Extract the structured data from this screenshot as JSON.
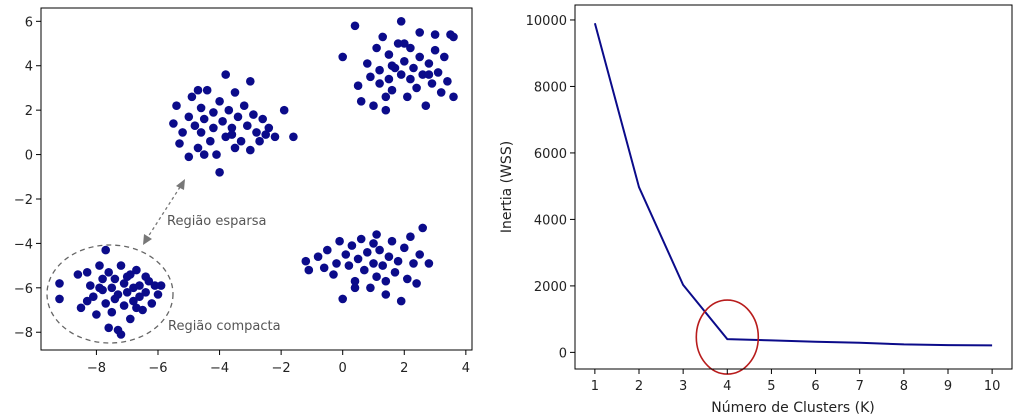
{
  "chart_data": [
    {
      "type": "scatter",
      "xlim": [
        -9.8,
        4.2
      ],
      "ylim": [
        -8.8,
        6.6
      ],
      "xticks": [
        -8,
        -6,
        -4,
        -2,
        0,
        2,
        4
      ],
      "yticks": [
        -8,
        -6,
        -4,
        -2,
        0,
        2,
        4,
        6
      ],
      "xtick_labels": [
        "−8",
        "−6",
        "−4",
        "−2",
        "0",
        "2",
        "4"
      ],
      "ytick_labels": [
        "−8",
        "−6",
        "−4",
        "−2",
        "0",
        "2",
        "4",
        "6"
      ],
      "grid": false,
      "point_color": "#0b0b8a",
      "annotation_color": "#666666",
      "annotations": {
        "sparse_label": "Região esparsa",
        "compact_label": "Região compacta"
      },
      "points": [
        [
          -9.2,
          -5.8
        ],
        [
          -9.2,
          -6.5
        ],
        [
          -8.5,
          -6.9
        ],
        [
          -8.3,
          -5.3
        ],
        [
          -8.2,
          -5.9
        ],
        [
          -8.1,
          -6.4
        ],
        [
          -8.0,
          -7.2
        ],
        [
          -7.9,
          -5.0
        ],
        [
          -7.8,
          -5.6
        ],
        [
          -7.8,
          -6.1
        ],
        [
          -7.7,
          -6.7
        ],
        [
          -7.7,
          -4.3
        ],
        [
          -7.6,
          -5.3
        ],
        [
          -7.5,
          -6.0
        ],
        [
          -7.5,
          -7.1
        ],
        [
          -7.4,
          -5.6
        ],
        [
          -7.3,
          -6.3
        ],
        [
          -7.3,
          -7.9
        ],
        [
          -7.2,
          -5.0
        ],
        [
          -7.1,
          -5.8
        ],
        [
          -7.1,
          -6.8
        ],
        [
          -7.0,
          -6.2
        ],
        [
          -6.9,
          -5.4
        ],
        [
          -6.9,
          -7.4
        ],
        [
          -6.8,
          -6.0
        ],
        [
          -6.8,
          -6.6
        ],
        [
          -6.7,
          -5.2
        ],
        [
          -6.6,
          -5.9
        ],
        [
          -6.6,
          -6.4
        ],
        [
          -6.5,
          -7.0
        ],
        [
          -6.4,
          -5.5
        ],
        [
          -6.4,
          -6.2
        ],
        [
          -6.3,
          -5.7
        ],
        [
          -6.2,
          -6.7
        ],
        [
          -6.1,
          -5.9
        ],
        [
          -6.0,
          -6.3
        ],
        [
          -5.9,
          -5.9
        ],
        [
          -7.9,
          -6.0
        ],
        [
          -7.4,
          -6.5
        ],
        [
          -7.6,
          -7.8
        ],
        [
          -8.6,
          -5.4
        ],
        [
          -7.0,
          -5.5
        ],
        [
          -6.7,
          -6.9
        ],
        [
          -7.2,
          -8.1
        ],
        [
          -8.3,
          -6.6
        ],
        [
          -5.5,
          1.4
        ],
        [
          -5.4,
          2.2
        ],
        [
          -5.3,
          0.5
        ],
        [
          -5.2,
          1.0
        ],
        [
          -5.0,
          1.7
        ],
        [
          -5.0,
          -0.1
        ],
        [
          -4.9,
          2.6
        ],
        [
          -4.8,
          1.3
        ],
        [
          -4.7,
          0.3
        ],
        [
          -4.6,
          2.1
        ],
        [
          -4.6,
          1.0
        ],
        [
          -4.5,
          1.6
        ],
        [
          -4.4,
          2.9
        ],
        [
          -4.3,
          0.6
        ],
        [
          -4.2,
          1.9
        ],
        [
          -4.2,
          1.2
        ],
        [
          -4.1,
          0.0
        ],
        [
          -4.0,
          2.4
        ],
        [
          -4.0,
          -0.8
        ],
        [
          -3.9,
          1.5
        ],
        [
          -3.8,
          0.8
        ],
        [
          -3.8,
          3.6
        ],
        [
          -3.7,
          2.0
        ],
        [
          -3.6,
          1.2
        ],
        [
          -3.5,
          0.3
        ],
        [
          -3.5,
          2.8
        ],
        [
          -3.4,
          1.7
        ],
        [
          -3.3,
          0.6
        ],
        [
          -3.2,
          2.2
        ],
        [
          -3.1,
          1.3
        ],
        [
          -3.0,
          3.3
        ],
        [
          -3.0,
          0.2
        ],
        [
          -2.9,
          1.8
        ],
        [
          -2.8,
          1.0
        ],
        [
          -2.7,
          0.6
        ],
        [
          -2.6,
          1.6
        ],
        [
          -2.4,
          1.2
        ],
        [
          -2.2,
          0.8
        ],
        [
          -1.9,
          2.0
        ],
        [
          -1.6,
          0.8
        ],
        [
          -4.7,
          2.9
        ],
        [
          -3.6,
          0.9
        ],
        [
          -4.5,
          0.0
        ],
        [
          -2.5,
          0.9
        ],
        [
          -1.2,
          -4.8
        ],
        [
          -1.1,
          -5.2
        ],
        [
          -0.8,
          -4.6
        ],
        [
          -0.6,
          -5.1
        ],
        [
          -0.5,
          -4.3
        ],
        [
          -0.3,
          -5.4
        ],
        [
          -0.2,
          -4.9
        ],
        [
          -0.1,
          -3.9
        ],
        [
          0.0,
          -6.5
        ],
        [
          0.1,
          -4.5
        ],
        [
          0.2,
          -5.0
        ],
        [
          0.3,
          -4.1
        ],
        [
          0.4,
          -5.7
        ],
        [
          0.5,
          -4.7
        ],
        [
          0.6,
          -3.8
        ],
        [
          0.7,
          -5.2
        ],
        [
          0.8,
          -4.4
        ],
        [
          0.9,
          -6.0
        ],
        [
          1.0,
          -4.9
        ],
        [
          1.1,
          -3.6
        ],
        [
          1.1,
          -5.5
        ],
        [
          1.2,
          -4.3
        ],
        [
          1.3,
          -5.0
        ],
        [
          1.4,
          -6.3
        ],
        [
          1.5,
          -4.6
        ],
        [
          1.6,
          -3.9
        ],
        [
          1.7,
          -5.3
        ],
        [
          1.8,
          -4.8
        ],
        [
          1.9,
          -6.6
        ],
        [
          2.0,
          -4.2
        ],
        [
          2.1,
          -5.6
        ],
        [
          2.2,
          -3.7
        ],
        [
          2.3,
          -4.9
        ],
        [
          2.4,
          -5.8
        ],
        [
          2.5,
          -4.5
        ],
        [
          2.6,
          -3.3
        ],
        [
          2.8,
          -4.9
        ],
        [
          1.0,
          -4.0
        ],
        [
          0.4,
          -6.0
        ],
        [
          1.4,
          -5.7
        ],
        [
          0.0,
          4.4
        ],
        [
          0.4,
          5.8
        ],
        [
          0.5,
          3.1
        ],
        [
          0.6,
          2.4
        ],
        [
          0.8,
          4.1
        ],
        [
          0.9,
          3.5
        ],
        [
          1.0,
          2.2
        ],
        [
          1.1,
          4.8
        ],
        [
          1.2,
          3.8
        ],
        [
          1.3,
          5.3
        ],
        [
          1.4,
          2.0
        ],
        [
          1.5,
          3.4
        ],
        [
          1.5,
          4.5
        ],
        [
          1.6,
          2.9
        ],
        [
          1.7,
          3.9
        ],
        [
          1.8,
          5.0
        ],
        [
          1.9,
          3.6
        ],
        [
          1.9,
          6.0
        ],
        [
          2.0,
          4.2
        ],
        [
          2.1,
          2.6
        ],
        [
          2.2,
          3.4
        ],
        [
          2.2,
          4.8
        ],
        [
          2.3,
          3.9
        ],
        [
          2.4,
          3.0
        ],
        [
          2.5,
          4.4
        ],
        [
          2.5,
          5.5
        ],
        [
          2.6,
          3.6
        ],
        [
          2.7,
          2.2
        ],
        [
          2.8,
          4.1
        ],
        [
          2.9,
          3.2
        ],
        [
          3.0,
          4.7
        ],
        [
          3.0,
          5.4
        ],
        [
          3.1,
          3.7
        ],
        [
          3.2,
          2.8
        ],
        [
          3.3,
          4.4
        ],
        [
          3.4,
          3.3
        ],
        [
          3.5,
          5.4
        ],
        [
          3.6,
          2.6
        ],
        [
          3.6,
          5.3
        ],
        [
          1.2,
          3.2
        ],
        [
          2.0,
          5.0
        ],
        [
          1.6,
          4.0
        ],
        [
          2.8,
          3.6
        ],
        [
          1.4,
          2.6
        ]
      ]
    },
    {
      "type": "line",
      "x": [
        1,
        2,
        3,
        4,
        5,
        6,
        7,
        8,
        9,
        10
      ],
      "y": [
        9900,
        4970,
        2030,
        400,
        360,
        320,
        290,
        240,
        220,
        210
      ],
      "xlim": [
        0.55,
        10.45
      ],
      "ylim": [
        -500,
        10450
      ],
      "xticks": [
        1,
        2,
        3,
        4,
        5,
        6,
        7,
        8,
        9,
        10
      ],
      "yticks": [
        0,
        2000,
        4000,
        6000,
        8000,
        10000
      ],
      "xtick_labels": [
        "1",
        "2",
        "3",
        "4",
        "5",
        "6",
        "7",
        "8",
        "9",
        "10"
      ],
      "ytick_labels": [
        "0",
        "2000",
        "4000",
        "6000",
        "8000",
        "10000"
      ],
      "xlabel": "Número de Clusters (K)",
      "ylabel": "Inertia (WSS)",
      "grid": false,
      "line_color": "#0b0b8a",
      "highlight_color": "#b81c1c",
      "highlight_x": 4
    }
  ]
}
